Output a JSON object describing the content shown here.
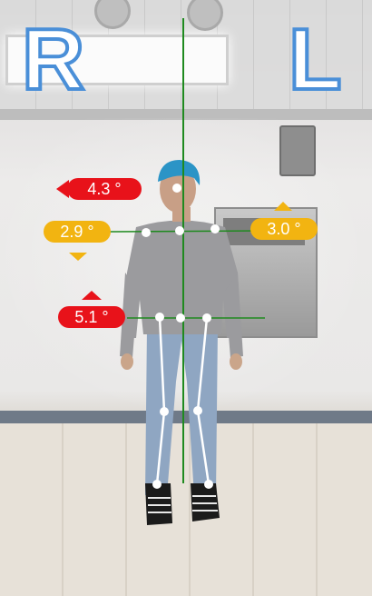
{
  "sides": {
    "right": "R",
    "left": "L"
  },
  "readouts": {
    "head_tilt": {
      "text": "4.3 °",
      "color": "#e8121a",
      "arrow": "left"
    },
    "shoulder_right": {
      "text": "2.9 °",
      "color": "#f2b411",
      "arrow": "down"
    },
    "shoulder_left": {
      "text": "3.0 °",
      "color": "#f2b411",
      "arrow": "up"
    },
    "pelvis": {
      "text": "5.1 °",
      "color": "#e8121a",
      "arrow": "up"
    }
  },
  "colors": {
    "plumb_line": "#1f8a1f",
    "skeleton": "#ffffff",
    "side_letter_outline": "#4a8fd8"
  }
}
